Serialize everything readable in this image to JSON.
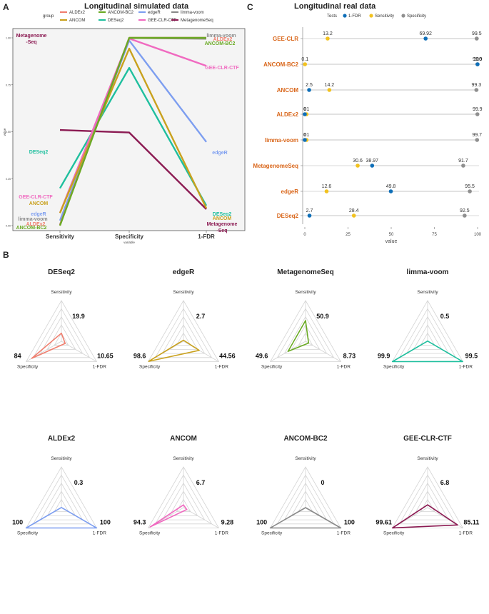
{
  "panel_labels": {
    "a": "A",
    "b": "B",
    "c": "C"
  },
  "colors": {
    "ALDEx2": "#f07f6f",
    "ANCOM": "#c9a11d",
    "ANCOM-BC2": "#6aaa24",
    "DESeq2": "#1fbf9e",
    "edgeR": "#7d9ef0",
    "GEE-CLR-CTF": "#f06ac0",
    "limma-voom": "#8a8a8a",
    "MetagenomeSeq": "#8b1a52",
    "name_label": "#d9661a",
    "fdr_dot": "#0f6fb8",
    "sens_dot": "#f2c21f",
    "spec_dot": "#8f8f8f"
  },
  "chart_data": [
    {
      "type": "line",
      "title": "Longitudinal simulated data",
      "legend_title": "group",
      "legend_items": [
        "ALDEx2",
        "ANCOM-BC2",
        "edgeR",
        "limma-voom",
        "ANCOM",
        "DESeq2",
        "GEE-CLR-CTF",
        "MetagenomeSeq"
      ],
      "categories": [
        "Sensitivity",
        "Specificity",
        "1-FDR"
      ],
      "xlabel": "variable",
      "ylabel": "value",
      "ylim": [
        0,
        1
      ],
      "yticks": [
        "0.00",
        "0.25",
        "0.50",
        "0.75",
        "1.00"
      ],
      "series": [
        {
          "name": "ALDEx2",
          "values": [
            0.003,
            1.0,
            1.0
          ]
        },
        {
          "name": "ANCOM",
          "values": [
            0.067,
            0.943,
            0.0928
          ]
        },
        {
          "name": "ANCOM-BC2",
          "values": [
            0.0,
            1.0,
            1.0
          ]
        },
        {
          "name": "DESeq2",
          "values": [
            0.199,
            0.84,
            0.1065
          ]
        },
        {
          "name": "edgeR",
          "values": [
            0.027,
            0.986,
            0.4456
          ]
        },
        {
          "name": "GEE-CLR-CTF",
          "values": [
            0.068,
            0.9961,
            0.8511
          ]
        },
        {
          "name": "limma-voom",
          "values": [
            0.005,
            0.999,
            0.995
          ]
        },
        {
          "name": "MetagenomeSeq",
          "values": [
            0.509,
            0.496,
            0.0873
          ]
        }
      ],
      "end_labels": {
        "left": [
          "Metagenome",
          "-Seq",
          "DESeq2",
          "GEE-CLR-CTF",
          "ANCOM",
          "edgeR",
          "limma-voom",
          "ALDEx2",
          "ANCOM-BC2"
        ],
        "right": [
          "limma-voom",
          "ALDEx2",
          "ANCOM-BC2",
          "GEE-CLR-CTF",
          "edgeR",
          "DESeq2",
          "ANCOM",
          "Metagenome",
          "-Seq"
        ]
      }
    },
    {
      "type": "scatter",
      "title": "Longitudinal real data",
      "legend_title": "Tests",
      "legend_items": [
        "1-FDR",
        "Sensitivity",
        "Specificity"
      ],
      "xlabel": "value",
      "xlim": [
        0,
        100
      ],
      "xticks": [
        "0",
        "25",
        "50",
        "75",
        "100"
      ],
      "rows": [
        {
          "name": "GEE-CLR",
          "fdr": 69.92,
          "sens": 13.2,
          "spec": 99.5,
          "fdr_label": "69.92",
          "sens_label": "13.2",
          "spec_label": "99.5"
        },
        {
          "name": "ANCOM-BC2",
          "fdr": 100,
          "sens": 0.1,
          "spec": 99.9,
          "fdr_label": "100",
          "sens_label": "0.1",
          "spec_label": "99.9"
        },
        {
          "name": "ANCOM",
          "fdr": 2.5,
          "sens": 14.2,
          "spec": 99.3,
          "fdr_label": "2.5",
          "sens_label": "14.2",
          "spec_label": "99.3"
        },
        {
          "name": "ALDEx2",
          "fdr": 0,
          "sens": 1,
          "spec": 99.9,
          "fdr_label": "0",
          "sens_label": "01",
          "spec_label": "99.9"
        },
        {
          "name": "limma-voom",
          "fdr": 0,
          "sens": 1,
          "spec": 99.7,
          "fdr_label": "0",
          "sens_label": "01",
          "spec_label": "99.7"
        },
        {
          "name": "MetagenomeSeq",
          "fdr": 38.97,
          "sens": 30.6,
          "spec": 91.7,
          "fdr_label": "38.97",
          "sens_label": "30.6",
          "spec_label": "91.7"
        },
        {
          "name": "edgeR",
          "fdr": 49.8,
          "sens": 12.6,
          "spec": 95.5,
          "fdr_label": "49.8",
          "sens_label": "12.6",
          "spec_label": "95.5"
        },
        {
          "name": "DESeq2",
          "fdr": 2.7,
          "sens": 28.4,
          "spec": 92.5,
          "fdr_label": "2.7",
          "sens_label": "28.4",
          "spec_label": "92.5"
        }
      ]
    },
    {
      "type": "radar",
      "axes": [
        "Sensitivity",
        "Specificity",
        "1-FDR"
      ],
      "scale_max": 100,
      "charts": [
        {
          "title": "DESeq2",
          "sensitivity": 19.9,
          "specificity": 84,
          "fdr": 10.65,
          "sens_label": "19.9",
          "spec_label": "84",
          "fdr_label": "10.65"
        },
        {
          "title": "edgeR",
          "sensitivity": 2.7,
          "specificity": 98.6,
          "fdr": 44.56,
          "sens_label": "2.7",
          "spec_label": "98.6",
          "fdr_label": "44.56"
        },
        {
          "title": "MetagenomeSeq",
          "sensitivity": 50.9,
          "specificity": 49.6,
          "fdr": 8.73,
          "sens_label": "50.9",
          "spec_label": "49.6",
          "fdr_label": "8.73"
        },
        {
          "title": "limma-voom",
          "sensitivity": 0.5,
          "specificity": 99.9,
          "fdr": 99.5,
          "sens_label": "0.5",
          "spec_label": "99.9",
          "fdr_label": "99.5"
        },
        {
          "title": "ALDEx2",
          "sensitivity": 0.3,
          "specificity": 100,
          "fdr": 100,
          "sens_label": "0.3",
          "spec_label": "100",
          "fdr_label": "100"
        },
        {
          "title": "ANCOM",
          "sensitivity": 6.7,
          "specificity": 94.3,
          "fdr": 9.28,
          "sens_label": "6.7",
          "spec_label": "94.3",
          "fdr_label": "9.28"
        },
        {
          "title": "ANCOM-BC2",
          "sensitivity": 0,
          "specificity": 100,
          "fdr": 100,
          "sens_label": "0",
          "spec_label": "100",
          "fdr_label": "100"
        },
        {
          "title": "GEE-CLR-CTF",
          "sensitivity": 6.8,
          "specificity": 99.61,
          "fdr": 85.11,
          "sens_label": "6.8",
          "spec_label": "99.61",
          "fdr_label": "85.11"
        }
      ]
    }
  ]
}
